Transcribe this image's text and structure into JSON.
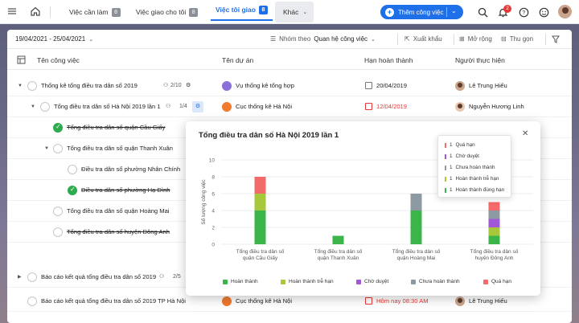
{
  "topbar": {
    "tabs": [
      {
        "label": "Việc cần làm",
        "count": "8"
      },
      {
        "label": "Việc giao cho tôi",
        "count": "8"
      },
      {
        "label": "Việc tôi giao",
        "count": "8"
      },
      {
        "label": "Khác"
      }
    ],
    "add_button": "Thêm công việc",
    "notification_count": "2"
  },
  "toolbar": {
    "date_range": "19/04/2021 - 25/04/2021",
    "group_label": "Nhóm theo",
    "group_value": "Quan hệ công việc",
    "export": "Xuất khẩu",
    "expand": "Mở rộng",
    "collapse": "Thu gọn"
  },
  "columns": {
    "task": "Tên công việc",
    "project": "Tên dự án",
    "deadline": "Hạn hoàn thành",
    "assignee": "Người thực hiện"
  },
  "rows": [
    {
      "name": "Thống kê tổng điều tra dân số 2019",
      "sub": "2/10",
      "project": "Vụ thống kê tổng hợp",
      "deadline": "20/04/2019",
      "assignee": "Lê Trung Hiếu"
    },
    {
      "name": "Tổng điều tra dân số Hà Nội 2019 lần 1",
      "sub": "1/4",
      "project": "Cục thống kê Hà Nội",
      "deadline": "12/04/2019",
      "assignee": "Nguyễn Hương Linh"
    },
    {
      "name": "Tổng điều tra dân số quận Cầu Giấy"
    },
    {
      "name": "Tổng điều tra dân số quận Thanh Xuân"
    },
    {
      "name": "Điều tra dân số phường Nhân Chính"
    },
    {
      "name": "Điều tra dân số phường Hạ Đình"
    },
    {
      "name": "Tổng điều tra dân số quận Hoàng Mai"
    },
    {
      "name": "Tổng điều tra dân số huyện Đông Anh"
    },
    {
      "name": "Báo cáo kết quả tổng điều tra dân số 2019",
      "sub": "2/5"
    },
    {
      "name": "Báo cáo kết quả tổng điều tra dân số 2019 TP Hà Nội",
      "project": "Cục thống kê Hà Nội",
      "deadline": "Hôm nay 08:30 AM",
      "assignee": "Lê Trung Hiếu"
    }
  ],
  "popup": {
    "title": "Tổng điều tra dân số Hà Nội 2019 lần 1",
    "close": "✕"
  },
  "chart_data": {
    "type": "bar",
    "stacked": true,
    "ylabel": "Số lượng công việc",
    "ylim": [
      0,
      10
    ],
    "yticks": [
      "0",
      "2",
      "4",
      "6",
      "8",
      "10"
    ],
    "categories": [
      [
        "Tổng điều tra dân số",
        "quận Cầu Giấy"
      ],
      [
        "Tổng điều tra dân số",
        "quận Thanh Xuân"
      ],
      [
        "Tổng điều tra dân số",
        "quận Hoàng Mai"
      ],
      [
        "Tổng điều tra dân số",
        "huyện Đông Anh"
      ]
    ],
    "series": [
      {
        "name": "Hoàn thành",
        "color": "#3bb54a",
        "values": [
          4,
          1,
          4,
          1
        ]
      },
      {
        "name": "Hoàn thành trễ hạn",
        "color": "#a6c83a",
        "values": [
          2,
          0,
          0,
          1
        ]
      },
      {
        "name": "Chờ duyệt",
        "color": "#a157d6",
        "values": [
          0,
          0,
          0,
          1
        ]
      },
      {
        "name": "Chưa hoàn thành",
        "color": "#8e9aa2",
        "values": [
          0,
          0,
          2,
          1
        ]
      },
      {
        "name": "Quá hạn",
        "color": "#f26a6a",
        "values": [
          2,
          0,
          0,
          1
        ]
      }
    ],
    "legend_position": "bottom",
    "tooltip": {
      "category_index": 3,
      "items": [
        {
          "label": "Quá hạn",
          "value": "1",
          "color": "#f26a6a"
        },
        {
          "label": "Chờ duyệt",
          "value": "1",
          "color": "#a157d6"
        },
        {
          "label": "Chưa hoàn thành",
          "value": "1",
          "color": "#8e9aa2"
        },
        {
          "label": "Hoàn thành trễ hạn",
          "value": "1",
          "color": "#a6c83a"
        },
        {
          "label": "Hoàn thành đúng hạn",
          "value": "1",
          "color": "#3bb54a"
        }
      ]
    }
  }
}
